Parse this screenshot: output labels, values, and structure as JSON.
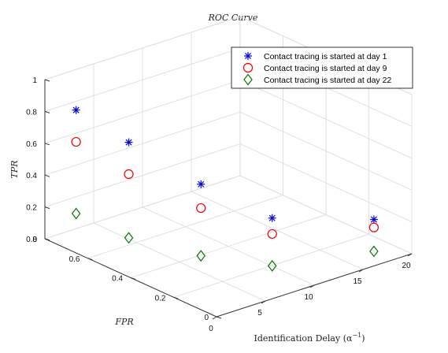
{
  "chart_data": {
    "type": "scatter",
    "title": "ROC Curve",
    "xlabel": "Identification Delay (α",
    "xlabel_sup": "−1",
    "xlabel_close": ")",
    "ylabel": "FPR",
    "zlabel": "TPR",
    "xlim": [
      0,
      20
    ],
    "ylim": [
      0,
      0.8
    ],
    "zlim": [
      0,
      1
    ],
    "x_ticks": [
      "0",
      "5",
      "10",
      "15",
      "20"
    ],
    "y_ticks": [
      "0",
      "0.2",
      "0.4",
      "0.6",
      "0.8"
    ],
    "z_ticks": [
      "0",
      "0.2",
      "0.4",
      "0.6",
      "0.8",
      "1"
    ],
    "grid": true,
    "legend_position": "top-right",
    "series": [
      {
        "name": "Contact tracing is started at day 1",
        "marker": "asterisk",
        "color": "#0000ee",
        "points": [
          {
            "x": 1,
            "y": 0.7,
            "z": 0.85
          },
          {
            "x": 2,
            "y": 0.5,
            "z": 0.75
          },
          {
            "x": 5,
            "y": 0.3,
            "z": 0.55
          },
          {
            "x": 9,
            "y": 0.15,
            "z": 0.35
          },
          {
            "x": 17,
            "y": 0.04,
            "z": 0.25
          }
        ]
      },
      {
        "name": "Contact tracing is started at day 9",
        "marker": "circle",
        "color": "#ee0000",
        "points": [
          {
            "x": 1,
            "y": 0.7,
            "z": 0.65
          },
          {
            "x": 2,
            "y": 0.5,
            "z": 0.55
          },
          {
            "x": 5,
            "y": 0.3,
            "z": 0.4
          },
          {
            "x": 9,
            "y": 0.15,
            "z": 0.25
          },
          {
            "x": 17,
            "y": 0.04,
            "z": 0.2
          }
        ]
      },
      {
        "name": "Contact tracing is started at day 22",
        "marker": "diamond",
        "color": "#007700",
        "points": [
          {
            "x": 1,
            "y": 0.7,
            "z": 0.2
          },
          {
            "x": 2,
            "y": 0.5,
            "z": 0.15
          },
          {
            "x": 5,
            "y": 0.3,
            "z": 0.1
          },
          {
            "x": 9,
            "y": 0.15,
            "z": 0.05
          },
          {
            "x": 17,
            "y": 0.04,
            "z": 0.05
          }
        ]
      }
    ]
  }
}
